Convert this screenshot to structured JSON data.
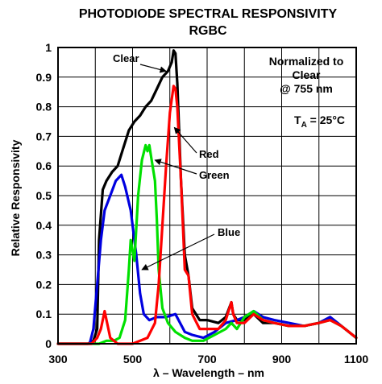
{
  "chart_data": {
    "type": "line",
    "title": "PHOTODIODE SPECTRAL RESPONSIVITY",
    "subtitle": "RGBC",
    "xlabel": "λ – Wavelength – nm",
    "ylabel": "Relative Responsivity",
    "xlim": [
      300,
      1100
    ],
    "ylim": [
      0,
      1
    ],
    "xticks": [
      "300",
      "500",
      "700",
      "900",
      "1100"
    ],
    "yticks": [
      "0",
      "0.1",
      "0.2",
      "0.3",
      "0.4",
      "0.5",
      "0.6",
      "0.7",
      "0.8",
      "0.9",
      "1"
    ],
    "grid": true,
    "note": [
      "Normalized to",
      "Clear",
      "@ 755 nm"
    ],
    "temp_label": {
      "main": "T",
      "sub": "A",
      "rest": " = 25°C"
    },
    "series": [
      {
        "name": "Clear",
        "color": "#000000",
        "x": [
          300,
          380,
          395,
          405,
          410,
          420,
          430,
          445,
          460,
          475,
          490,
          505,
          520,
          535,
          550,
          565,
          580,
          595,
          605,
          610,
          615,
          620,
          630,
          640,
          650,
          660,
          680,
          700,
          730,
          750,
          765,
          770,
          780,
          800,
          825,
          850,
          880,
          920,
          960,
          1000,
          1030,
          1060,
          1080,
          1100
        ],
        "y": [
          0,
          0,
          0.01,
          0.05,
          0.35,
          0.52,
          0.55,
          0.58,
          0.6,
          0.66,
          0.72,
          0.75,
          0.77,
          0.8,
          0.82,
          0.86,
          0.9,
          0.92,
          0.95,
          0.99,
          0.98,
          0.88,
          0.55,
          0.3,
          0.23,
          0.12,
          0.08,
          0.08,
          0.07,
          0.09,
          0.14,
          0.1,
          0.08,
          0.08,
          0.1,
          0.07,
          0.07,
          0.06,
          0.06,
          0.07,
          0.09,
          0.06,
          0.04,
          0.02
        ]
      },
      {
        "name": "Red",
        "color": "#ff0000",
        "x": [
          300,
          390,
          405,
          415,
          425,
          440,
          460,
          500,
          540,
          560,
          570,
          580,
          590,
          600,
          610,
          615,
          620,
          630,
          640,
          650,
          660,
          680,
          700,
          730,
          750,
          765,
          770,
          780,
          800,
          825,
          850,
          880,
          920,
          960,
          1000,
          1030,
          1060,
          1080,
          1100
        ],
        "y": [
          0,
          0,
          0.02,
          0.05,
          0.11,
          0.02,
          0,
          0,
          0.02,
          0.07,
          0.2,
          0.4,
          0.6,
          0.78,
          0.87,
          0.86,
          0.8,
          0.55,
          0.25,
          0.23,
          0.1,
          0.05,
          0.05,
          0.05,
          0.08,
          0.14,
          0.1,
          0.07,
          0.07,
          0.1,
          0.08,
          0.07,
          0.06,
          0.06,
          0.07,
          0.08,
          0.06,
          0.04,
          0.02
        ]
      },
      {
        "name": "Green",
        "color": "#00e000",
        "x": [
          300,
          390,
          410,
          430,
          450,
          465,
          480,
          490,
          495,
          505,
          515,
          525,
          535,
          540,
          545,
          550,
          560,
          565,
          570,
          580,
          595,
          615,
          640,
          660,
          690,
          720,
          750,
          765,
          780,
          800,
          825,
          850,
          880,
          920,
          960,
          1000,
          1030,
          1060,
          1080,
          1100
        ],
        "y": [
          0,
          0,
          0,
          0.01,
          0.01,
          0.02,
          0.08,
          0.25,
          0.35,
          0.28,
          0.5,
          0.62,
          0.67,
          0.65,
          0.67,
          0.63,
          0.55,
          0.42,
          0.25,
          0.12,
          0.07,
          0.04,
          0.02,
          0.01,
          0.01,
          0.03,
          0.05,
          0.07,
          0.05,
          0.09,
          0.11,
          0.08,
          0.07,
          0.06,
          0.06,
          0.07,
          0.08,
          0.06,
          0.04,
          0.02
        ]
      },
      {
        "name": "Blue",
        "color": "#0000e0",
        "x": [
          300,
          385,
          395,
          405,
          415,
          425,
          440,
          455,
          470,
          480,
          495,
          510,
          520,
          530,
          545,
          565,
          590,
          615,
          640,
          660,
          690,
          720,
          750,
          780,
          800,
          825,
          850,
          880,
          920,
          960,
          1000,
          1030,
          1060,
          1080,
          1100
        ],
        "y": [
          0,
          0,
          0.05,
          0.2,
          0.35,
          0.45,
          0.5,
          0.55,
          0.57,
          0.53,
          0.45,
          0.3,
          0.17,
          0.1,
          0.08,
          0.09,
          0.09,
          0.1,
          0.04,
          0.03,
          0.02,
          0.04,
          0.07,
          0.08,
          0.09,
          0.11,
          0.09,
          0.08,
          0.07,
          0.06,
          0.07,
          0.09,
          0.06,
          0.04,
          0.02
        ]
      }
    ],
    "annotations": [
      {
        "text": "Clear",
        "target_series": "Clear",
        "point": [
          590,
          0.92
        ]
      },
      {
        "text": "Red",
        "target_series": "Red",
        "point": [
          612,
          0.73
        ]
      },
      {
        "text": "Green",
        "target_series": "Green",
        "point": [
          560,
          0.62
        ]
      },
      {
        "text": "Blue",
        "target_series": "Blue",
        "point": [
          525,
          0.25
        ]
      }
    ]
  }
}
